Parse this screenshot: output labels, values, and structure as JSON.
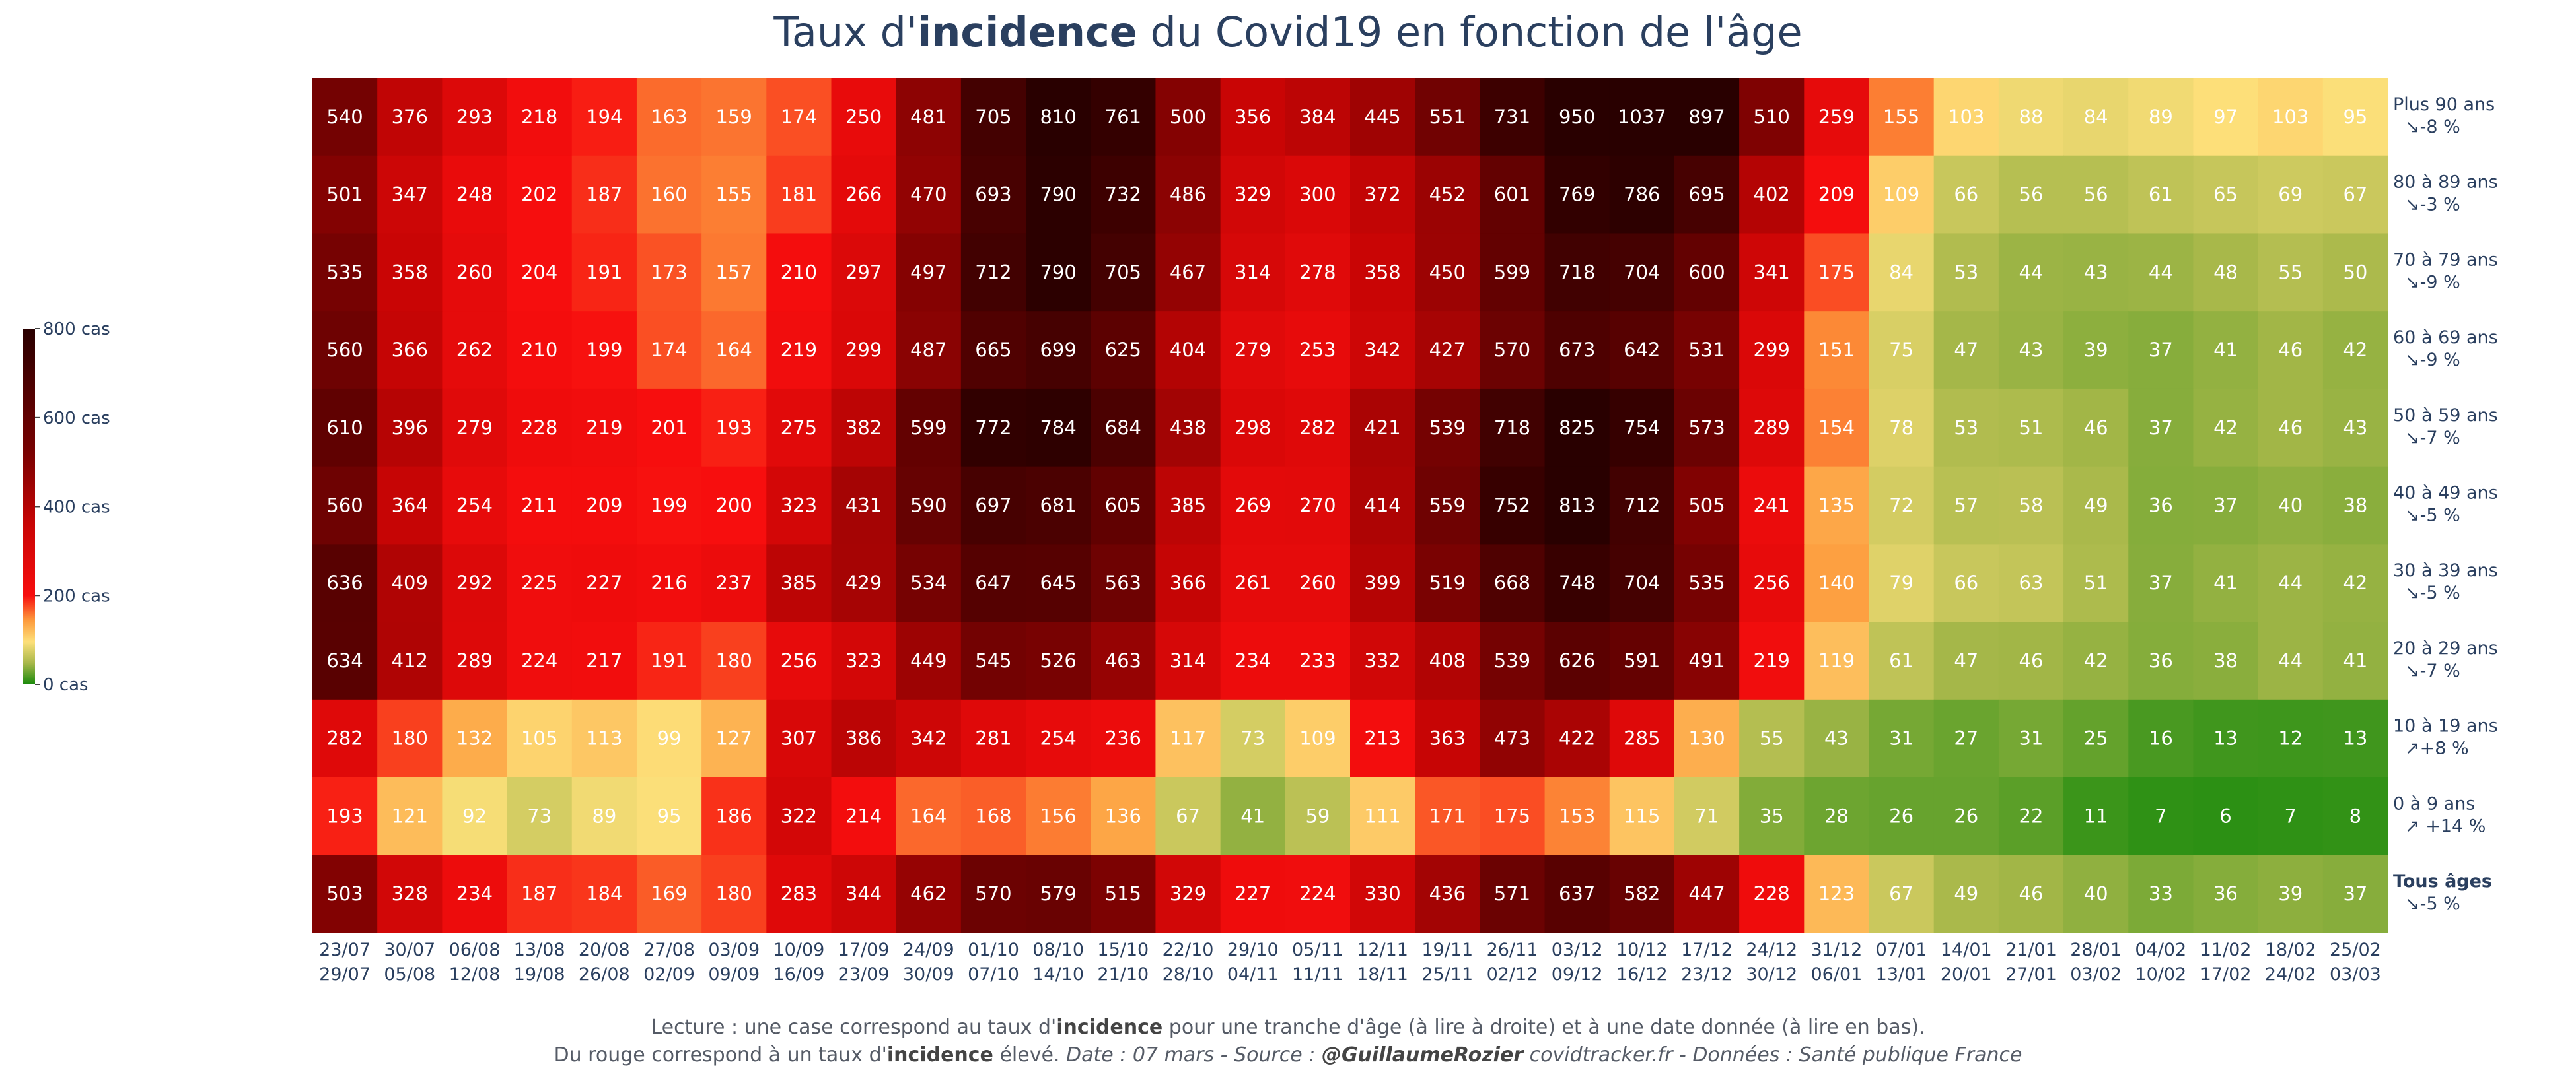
{
  "title": {
    "pre": "Taux d'",
    "bold": "incidence",
    "post": " du Covid19 en fonction de l'âge"
  },
  "chart_data": {
    "type": "heatmap",
    "x": [
      [
        "23/07",
        "29/07"
      ],
      [
        "30/07",
        "05/08"
      ],
      [
        "06/08",
        "12/08"
      ],
      [
        "13/08",
        "19/08"
      ],
      [
        "20/08",
        "26/08"
      ],
      [
        "27/08",
        "02/09"
      ],
      [
        "03/09",
        "09/09"
      ],
      [
        "10/09",
        "16/09"
      ],
      [
        "17/09",
        "23/09"
      ],
      [
        "24/09",
        "30/09"
      ],
      [
        "01/10",
        "07/10"
      ],
      [
        "08/10",
        "14/10"
      ],
      [
        "15/10",
        "21/10"
      ],
      [
        "22/10",
        "28/10"
      ],
      [
        "29/10",
        "04/11"
      ],
      [
        "05/11",
        "11/11"
      ],
      [
        "12/11",
        "18/11"
      ],
      [
        "19/11",
        "25/11"
      ],
      [
        "26/11",
        "02/12"
      ],
      [
        "03/12",
        "09/12"
      ],
      [
        "10/12",
        "16/12"
      ],
      [
        "17/12",
        "23/12"
      ],
      [
        "24/12",
        "30/12"
      ],
      [
        "31/12",
        "06/01"
      ],
      [
        "07/01",
        "13/01"
      ],
      [
        "14/01",
        "20/01"
      ],
      [
        "21/01",
        "27/01"
      ],
      [
        "28/01",
        "03/02"
      ],
      [
        "04/02",
        "10/02"
      ],
      [
        "11/02",
        "17/02"
      ],
      [
        "18/02",
        "24/02"
      ],
      [
        "25/02",
        "03/03"
      ]
    ],
    "rows": [
      {
        "label": "Plus 90 ans",
        "trend": "↘-8 %",
        "bold": false,
        "values": [
          540,
          376,
          293,
          218,
          194,
          163,
          159,
          174,
          250,
          481,
          705,
          810,
          761,
          500,
          356,
          384,
          445,
          551,
          731,
          950,
          1037,
          897,
          510,
          259,
          155,
          103,
          88,
          84,
          89,
          97,
          103,
          95
        ]
      },
      {
        "label": "80 à 89 ans",
        "trend": "↘-3 %",
        "bold": false,
        "values": [
          501,
          347,
          248,
          202,
          187,
          160,
          155,
          181,
          266,
          470,
          693,
          790,
          732,
          486,
          329,
          300,
          372,
          452,
          601,
          769,
          786,
          695,
          402,
          209,
          109,
          66,
          56,
          56,
          61,
          65,
          69,
          67
        ]
      },
      {
        "label": "70 à 79 ans",
        "trend": "↘-9 %",
        "bold": false,
        "values": [
          535,
          358,
          260,
          204,
          191,
          173,
          157,
          210,
          297,
          497,
          712,
          790,
          705,
          467,
          314,
          278,
          358,
          450,
          599,
          718,
          704,
          600,
          341,
          175,
          84,
          53,
          44,
          43,
          44,
          48,
          55,
          50
        ]
      },
      {
        "label": "60 à 69 ans",
        "trend": "↘-9 %",
        "bold": false,
        "values": [
          560,
          366,
          262,
          210,
          199,
          174,
          164,
          219,
          299,
          487,
          665,
          699,
          625,
          404,
          279,
          253,
          342,
          427,
          570,
          673,
          642,
          531,
          299,
          151,
          75,
          47,
          43,
          39,
          37,
          41,
          46,
          42
        ]
      },
      {
        "label": "50 à 59 ans",
        "trend": "↘-7 %",
        "bold": false,
        "values": [
          610,
          396,
          279,
          228,
          219,
          201,
          193,
          275,
          382,
          599,
          772,
          784,
          684,
          438,
          298,
          282,
          421,
          539,
          718,
          825,
          754,
          573,
          289,
          154,
          78,
          53,
          51,
          46,
          37,
          42,
          46,
          43
        ]
      },
      {
        "label": "40 à 49 ans",
        "trend": "↘-5 %",
        "bold": false,
        "values": [
          560,
          364,
          254,
          211,
          209,
          199,
          200,
          323,
          431,
          590,
          697,
          681,
          605,
          385,
          269,
          270,
          414,
          559,
          752,
          813,
          712,
          505,
          241,
          135,
          72,
          57,
          58,
          49,
          36,
          37,
          40,
          38
        ]
      },
      {
        "label": "30 à 39 ans",
        "trend": "↘-5 %",
        "bold": false,
        "values": [
          636,
          409,
          292,
          225,
          227,
          216,
          237,
          385,
          429,
          534,
          647,
          645,
          563,
          366,
          261,
          260,
          399,
          519,
          668,
          748,
          704,
          535,
          256,
          140,
          79,
          66,
          63,
          51,
          37,
          41,
          44,
          42
        ]
      },
      {
        "label": "20 à 29 ans",
        "trend": "↘-7 %",
        "bold": false,
        "values": [
          634,
          412,
          289,
          224,
          217,
          191,
          180,
          256,
          323,
          449,
          545,
          526,
          463,
          314,
          234,
          233,
          332,
          408,
          539,
          626,
          591,
          491,
          219,
          119,
          61,
          47,
          46,
          42,
          36,
          38,
          44,
          41
        ]
      },
      {
        "label": "10 à 19 ans",
        "trend": "↗+8 %",
        "bold": false,
        "values": [
          282,
          180,
          132,
          105,
          113,
          99,
          127,
          307,
          386,
          342,
          281,
          254,
          236,
          117,
          73,
          109,
          213,
          363,
          473,
          422,
          285,
          130,
          55,
          43,
          31,
          27,
          31,
          25,
          16,
          13,
          12,
          13
        ]
      },
      {
        "label": "0 à 9 ans",
        "trend": "↗ +14 %",
        "bold": false,
        "values": [
          193,
          121,
          92,
          73,
          89,
          95,
          186,
          322,
          214,
          164,
          168,
          156,
          136,
          67,
          41,
          59,
          111,
          171,
          175,
          153,
          115,
          71,
          35,
          28,
          26,
          26,
          22,
          11,
          7,
          6,
          7,
          8
        ]
      },
      {
        "label": "Tous âges",
        "trend": "↘-5 %",
        "bold": true,
        "values": [
          503,
          328,
          234,
          187,
          184,
          169,
          180,
          283,
          344,
          462,
          570,
          579,
          515,
          329,
          227,
          224,
          330,
          436,
          571,
          637,
          582,
          447,
          228,
          123,
          67,
          49,
          46,
          40,
          33,
          36,
          39,
          37
        ]
      }
    ],
    "zmin": 0,
    "zmax": 800,
    "colorscale": [
      [
        0.0,
        "#1a8a0c"
      ],
      [
        0.06,
        "#a8b84a"
      ],
      [
        0.12,
        "#fde07a"
      ],
      [
        0.18,
        "#fd9a3c"
      ],
      [
        0.25,
        "#f70e0e"
      ],
      [
        0.45,
        "#c80505"
      ],
      [
        0.65,
        "#7a0202"
      ],
      [
        1.0,
        "#290000"
      ]
    ],
    "colorbar": {
      "ticks": [
        0,
        200,
        400,
        600,
        800
      ],
      "ticklabels": [
        "0 cas",
        "200 cas",
        "400 cas",
        "600 cas",
        "800 cas"
      ]
    }
  },
  "footer": {
    "line1_pre": "Lecture : une case correspond au taux d'",
    "line1_bold": "incidence",
    "line1_post": " pour une tranche d'âge (à lire à droite) et à une date donnée (à lire en bas).",
    "line2_pre": "Du rouge correspond à un taux d'",
    "line2_bold": "incidence",
    "line2_mid": " élevé. ",
    "line2_date": "Date : 07 mars - Source : ",
    "line2_author": "@GuillaumeRozier",
    "line2_rest": " covidtracker.fr - Données : Santé publique France"
  }
}
